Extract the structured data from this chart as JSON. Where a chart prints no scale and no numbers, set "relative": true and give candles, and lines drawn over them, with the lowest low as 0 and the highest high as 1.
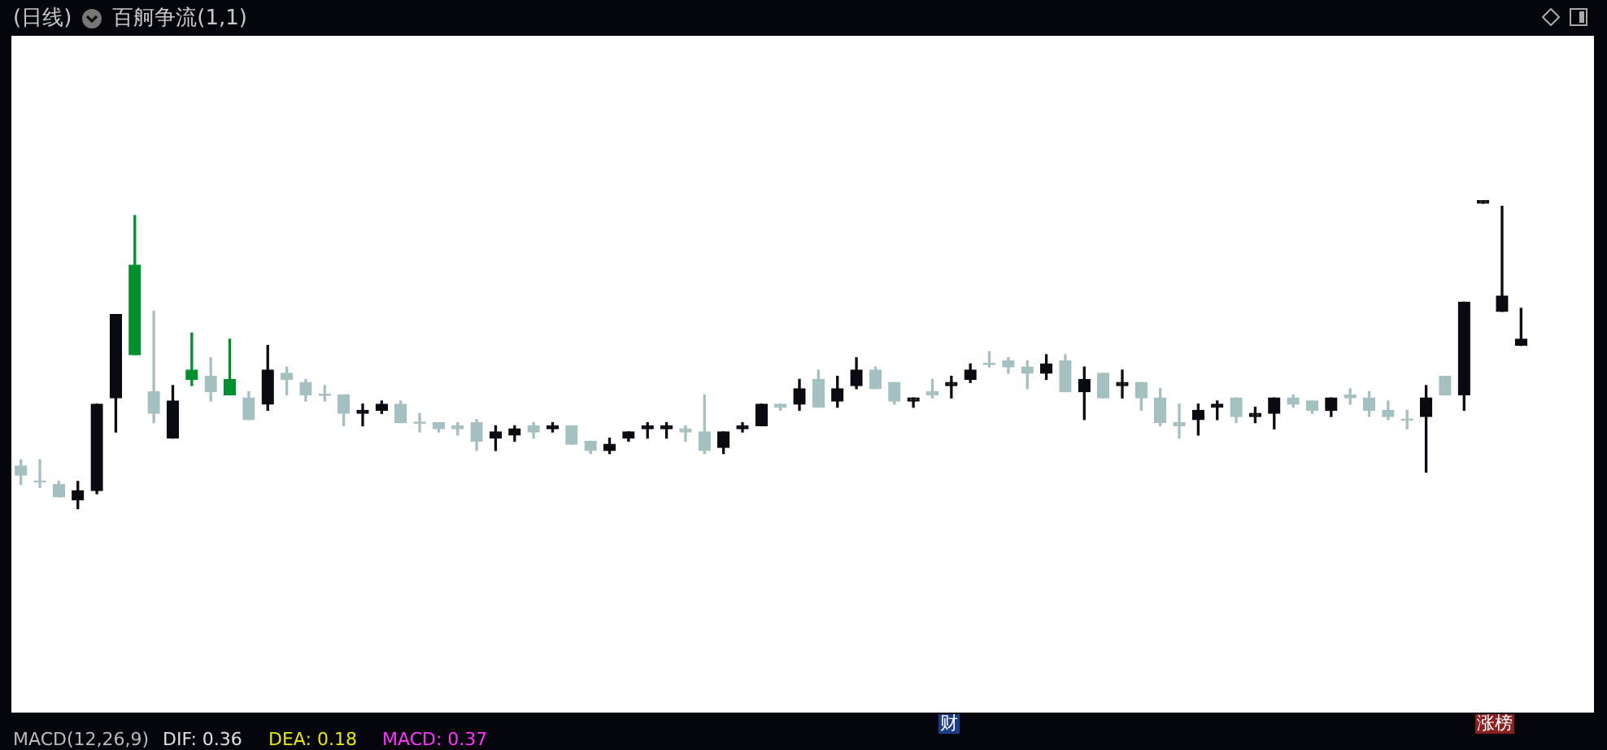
{
  "chart_data": {
    "type": "candlestick",
    "title": "(日线)",
    "subtitle": "百舸争流(1,1)",
    "relative": true,
    "categories": [
      null,
      null,
      null,
      null,
      null,
      null,
      null,
      null,
      null,
      null,
      null,
      null,
      null,
      null,
      null,
      null,
      null,
      null,
      null,
      null,
      null,
      null,
      null,
      null,
      null,
      null,
      null,
      null,
      null,
      null,
      null,
      null,
      null,
      null,
      null,
      null,
      null,
      null,
      null,
      null,
      null,
      null,
      null,
      null,
      null,
      null,
      null,
      null,
      null,
      null,
      null,
      null,
      null,
      null,
      null,
      null,
      null,
      null,
      null,
      null,
      null,
      null,
      null,
      null,
      null,
      null,
      null,
      null,
      null,
      null,
      null,
      null,
      null,
      null,
      null,
      null,
      null,
      null,
      null,
      null
    ],
    "ohlc": [
      [
        0.14,
        0.16,
        0.08,
        0.11
      ],
      [
        0.09,
        0.16,
        0.07,
        0.09
      ],
      [
        0.08,
        0.09,
        0.04,
        0.04
      ],
      [
        0.03,
        0.09,
        0,
        0.06
      ],
      [
        0.06,
        0.34,
        0.05,
        0.34
      ],
      [
        0.36,
        0.63,
        0.25,
        0.63
      ],
      [
        0.79,
        0.95,
        0.5,
        0.5
      ],
      [
        0.38,
        0.64,
        0.28,
        0.31
      ],
      [
        0.23,
        0.4,
        0.23,
        0.35
      ],
      [
        0.45,
        0.57,
        0.4,
        0.42
      ],
      [
        0.43,
        0.49,
        0.35,
        0.38
      ],
      [
        0.42,
        0.55,
        0.37,
        0.37
      ],
      [
        0.36,
        0.38,
        0.29,
        0.29
      ],
      [
        0.34,
        0.53,
        0.32,
        0.45
      ],
      [
        0.44,
        0.46,
        0.37,
        0.42
      ],
      [
        0.41,
        0.42,
        0.35,
        0.37
      ],
      [
        0.37,
        0.4,
        0.35,
        0.37
      ],
      [
        0.37,
        0.37,
        0.27,
        0.31
      ],
      [
        0.31,
        0.34,
        0.27,
        0.32
      ],
      [
        0.32,
        0.35,
        0.31,
        0.34
      ],
      [
        0.34,
        0.35,
        0.28,
        0.28
      ],
      [
        0.28,
        0.31,
        0.25,
        0.28
      ],
      [
        0.28,
        0.28,
        0.25,
        0.26
      ],
      [
        0.27,
        0.28,
        0.24,
        0.26
      ],
      [
        0.28,
        0.29,
        0.19,
        0.22
      ],
      [
        0.23,
        0.27,
        0.19,
        0.25
      ],
      [
        0.24,
        0.27,
        0.22,
        0.26
      ],
      [
        0.27,
        0.28,
        0.23,
        0.25
      ],
      [
        0.26,
        0.28,
        0.25,
        0.27
      ],
      [
        0.27,
        0.27,
        0.21,
        0.21
      ],
      [
        0.22,
        0.22,
        0.18,
        0.19
      ],
      [
        0.19,
        0.23,
        0.18,
        0.21
      ],
      [
        0.23,
        0.25,
        0.22,
        0.25
      ],
      [
        0.26,
        0.28,
        0.23,
        0.27
      ],
      [
        0.26,
        0.28,
        0.23,
        0.27
      ],
      [
        0.26,
        0.27,
        0.22,
        0.25
      ],
      [
        0.25,
        0.37,
        0.18,
        0.19
      ],
      [
        0.2,
        0.25,
        0.18,
        0.25
      ],
      [
        0.26,
        0.28,
        0.25,
        0.27
      ],
      [
        0.27,
        0.34,
        0.27,
        0.34
      ],
      [
        0.34,
        0.34,
        0.32,
        0.33
      ],
      [
        0.34,
        0.42,
        0.32,
        0.39
      ],
      [
        0.42,
        0.45,
        0.33,
        0.33
      ],
      [
        0.35,
        0.43,
        0.33,
        0.39
      ],
      [
        0.4,
        0.49,
        0.39,
        0.45
      ],
      [
        0.45,
        0.46,
        0.39,
        0.39
      ],
      [
        0.41,
        0.41,
        0.34,
        0.35
      ],
      [
        0.35,
        0.36,
        0.33,
        0.36
      ],
      [
        0.38,
        0.42,
        0.36,
        0.37
      ],
      [
        0.4,
        0.43,
        0.36,
        0.41
      ],
      [
        0.42,
        0.47,
        0.41,
        0.45
      ],
      [
        0.47,
        0.51,
        0.46,
        0.47
      ],
      [
        0.48,
        0.49,
        0.44,
        0.46
      ],
      [
        0.46,
        0.48,
        0.39,
        0.44
      ],
      [
        0.44,
        0.5,
        0.42,
        0.47
      ],
      [
        0.48,
        0.5,
        0.38,
        0.38
      ],
      [
        0.38,
        0.46,
        0.29,
        0.42
      ],
      [
        0.44,
        0.44,
        0.36,
        0.36
      ],
      [
        0.4,
        0.45,
        0.36,
        0.41
      ],
      [
        0.41,
        0.41,
        0.32,
        0.36
      ],
      [
        0.36,
        0.39,
        0.27,
        0.28
      ],
      [
        0.28,
        0.34,
        0.23,
        0.27
      ],
      [
        0.29,
        0.34,
        0.24,
        0.32
      ],
      [
        0.33,
        0.35,
        0.29,
        0.34
      ],
      [
        0.36,
        0.36,
        0.28,
        0.3
      ],
      [
        0.3,
        0.33,
        0.28,
        0.31
      ],
      [
        0.31,
        0.36,
        0.26,
        0.36
      ],
      [
        0.36,
        0.37,
        0.33,
        0.34
      ],
      [
        0.35,
        0.35,
        0.31,
        0.32
      ],
      [
        0.32,
        0.36,
        0.3,
        0.36
      ],
      [
        0.37,
        0.39,
        0.34,
        0.36
      ],
      [
        0.36,
        0.38,
        0.3,
        0.32
      ],
      [
        0.32,
        0.35,
        0.29,
        0.3
      ],
      [
        0.29,
        0.32,
        0.26,
        0.29
      ],
      [
        0.3,
        0.4,
        0.12,
        0.36
      ],
      [
        0.43,
        0.43,
        0.37,
        0.37
      ],
      [
        0.37,
        0.67,
        0.32,
        0.67
      ],
      [
        0.99,
        1,
        0.99,
        1
      ],
      [
        0.64,
        0.98,
        0.64,
        0.69
      ],
      [
        0.53,
        0.65,
        0.53,
        0.55
      ]
    ],
    "colors": [
      "#a5c0c0",
      "#a5c0c0",
      "#a5c0c0",
      "#0a0a12",
      "#0a0a12",
      "#0a0a12",
      "#00912f",
      "#a5c0c0",
      "#0a0a12",
      "#00912f",
      "#a5c0c0",
      "#00912f",
      "#a5c0c0",
      "#0a0a12",
      "#a5c0c0",
      "#a5c0c0",
      "#a5c0c0",
      "#a5c0c0",
      "#0a0a12",
      "#0a0a12",
      "#a5c0c0",
      "#a5c0c0",
      "#a5c0c0",
      "#a5c0c0",
      "#a5c0c0",
      "#0a0a12",
      "#0a0a12",
      "#a5c0c0",
      "#0a0a12",
      "#a5c0c0",
      "#a5c0c0",
      "#0a0a12",
      "#0a0a12",
      "#0a0a12",
      "#0a0a12",
      "#a5c0c0",
      "#a5c0c0",
      "#0a0a12",
      "#0a0a12",
      "#0a0a12",
      "#a5c0c0",
      "#0a0a12",
      "#a5c0c0",
      "#0a0a12",
      "#0a0a12",
      "#a5c0c0",
      "#a5c0c0",
      "#0a0a12",
      "#a5c0c0",
      "#0a0a12",
      "#0a0a12",
      "#a5c0c0",
      "#a5c0c0",
      "#a5c0c0",
      "#0a0a12",
      "#a5c0c0",
      "#0a0a12",
      "#a5c0c0",
      "#0a0a12",
      "#a5c0c0",
      "#a5c0c0",
      "#a5c0c0",
      "#0a0a12",
      "#0a0a12",
      "#a5c0c0",
      "#0a0a12",
      "#0a0a12",
      "#a5c0c0",
      "#a5c0c0",
      "#0a0a12",
      "#a5c0c0",
      "#a5c0c0",
      "#a5c0c0",
      "#a5c0c0",
      "#0a0a12",
      "#a5c0c0",
      "#0a0a12",
      "#0a0a12",
      "#0a0a12",
      "#0a0a12"
    ],
    "annotations": [
      "财",
      "涨榜",
      "MACD(12,26,9)",
      "DIF: 0.36",
      "DEA: 0.18",
      "MACD: 0.37"
    ]
  }
}
